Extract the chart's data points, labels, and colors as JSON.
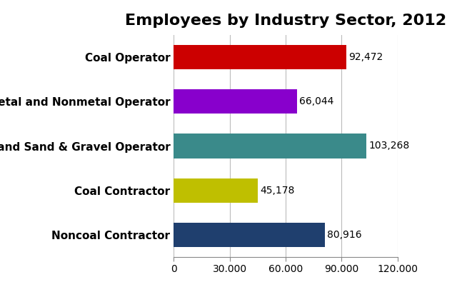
{
  "title": "Employees by Industry Sector, 2012",
  "categories": [
    "Noncoal Contractor",
    "Coal Contractor",
    "Stone and Sand & Gravel Operator",
    "Metal and Nonmetal Operator",
    "Coal Operator"
  ],
  "values": [
    80916,
    45178,
    103268,
    66044,
    92472
  ],
  "bar_colors": [
    "#1f3f6e",
    "#bfbf00",
    "#3a8a8a",
    "#8800cc",
    "#cc0000"
  ],
  "value_labels": [
    "80,916",
    "45,178",
    "103,268",
    "66,044",
    "92,472"
  ],
  "xlim": [
    0,
    120000
  ],
  "xticks": [
    0,
    30000,
    60000,
    90000,
    120000
  ],
  "xtick_labels": [
    "0",
    "30.000",
    "60.000",
    "90.000",
    "120.000"
  ],
  "title_fontsize": 16,
  "label_fontsize": 11,
  "tick_fontsize": 10,
  "value_label_fontsize": 10,
  "background_color": "#ffffff",
  "grid_color": "#bbbbbb"
}
